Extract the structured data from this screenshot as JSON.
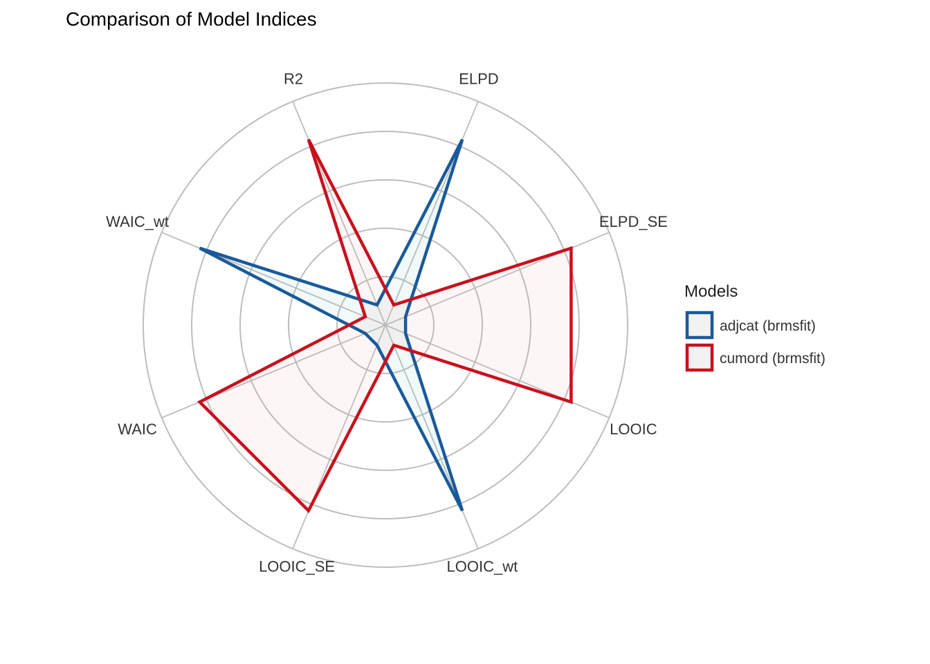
{
  "chart_data": {
    "type": "radar",
    "title": "Comparison of Model Indices",
    "axes": [
      "ELPD",
      "ELPD_SE",
      "LOOIC",
      "LOOIC_wt",
      "LOOIC_SE",
      "WAIC",
      "WAIC_wt",
      "R2"
    ],
    "rlim": [
      0,
      1
    ],
    "grid_rings": 5,
    "series": [
      {
        "name": "adjcat (brmsfit)",
        "color": "#1a5a9a",
        "fill": "#7ac5c0",
        "values": [
          0.83,
          0.09,
          0.09,
          0.83,
          0.09,
          0.09,
          0.83,
          0.09
        ]
      },
      {
        "name": "cumord (brmsfit)",
        "color": "#c8111e",
        "fill": "#e8a5a5",
        "values": [
          0.09,
          0.83,
          0.83,
          0.09,
          0.83,
          0.83,
          0.09,
          0.83
        ]
      }
    ],
    "legend": {
      "title": "Models",
      "position": "right"
    }
  }
}
